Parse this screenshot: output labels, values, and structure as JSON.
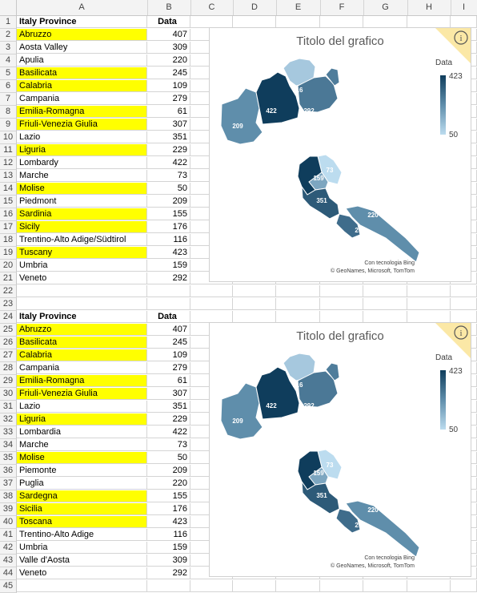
{
  "columns": [
    "A",
    "B",
    "C",
    "D",
    "E",
    "F",
    "G",
    "H",
    "I"
  ],
  "rows": [
    {
      "n": "1",
      "a": "Italy Province",
      "b": "Data",
      "hdr": true
    },
    {
      "n": "2",
      "a": "Abruzzo",
      "b": "407",
      "y": true
    },
    {
      "n": "3",
      "a": "Aosta Valley",
      "b": "309"
    },
    {
      "n": "4",
      "a": "Apulia",
      "b": "220"
    },
    {
      "n": "5",
      "a": "Basilicata",
      "b": "245",
      "y": true
    },
    {
      "n": "6",
      "a": "Calabria",
      "b": "109",
      "y": true
    },
    {
      "n": "7",
      "a": "Campania",
      "b": "279"
    },
    {
      "n": "8",
      "a": "Emilia-Romagna",
      "b": "61",
      "y": true
    },
    {
      "n": "9",
      "a": "Friuli-Venezia Giulia",
      "b": "307",
      "y": true
    },
    {
      "n": "10",
      "a": "Lazio",
      "b": "351"
    },
    {
      "n": "11",
      "a": "Liguria",
      "b": "229",
      "y": true
    },
    {
      "n": "12",
      "a": "Lombardy",
      "b": "422"
    },
    {
      "n": "13",
      "a": "Marche",
      "b": "73"
    },
    {
      "n": "14",
      "a": "Molise",
      "b": "50",
      "y": true
    },
    {
      "n": "15",
      "a": "Piedmont",
      "b": "209"
    },
    {
      "n": "16",
      "a": "Sardinia",
      "b": "155",
      "y": true
    },
    {
      "n": "17",
      "a": "Sicily",
      "b": "176",
      "y": true
    },
    {
      "n": "18",
      "a": "Trentino-Alto Adige/Südtirol",
      "b": "116"
    },
    {
      "n": "19",
      "a": "Tuscany",
      "b": "423",
      "y": true
    },
    {
      "n": "20",
      "a": "Umbria",
      "b": "159"
    },
    {
      "n": "21",
      "a": "Veneto",
      "b": "292"
    },
    {
      "n": "22",
      "a": "",
      "b": ""
    },
    {
      "n": "23",
      "a": "",
      "b": ""
    },
    {
      "n": "24",
      "a": "Italy Province",
      "b": "Data",
      "hdr": true
    },
    {
      "n": "25",
      "a": "Abruzzo",
      "b": "407",
      "y": true
    },
    {
      "n": "26",
      "a": "Basilicata",
      "b": "245",
      "y": true
    },
    {
      "n": "27",
      "a": "Calabria",
      "b": "109",
      "y": true
    },
    {
      "n": "28",
      "a": "Campania",
      "b": "279"
    },
    {
      "n": "29",
      "a": "Emilia-Romagna",
      "b": "61",
      "y": true
    },
    {
      "n": "30",
      "a": "Friuli-Venezia Giulia",
      "b": "307",
      "y": true
    },
    {
      "n": "31",
      "a": "Lazio",
      "b": "351"
    },
    {
      "n": "32",
      "a": "Liguria",
      "b": "229",
      "y": true
    },
    {
      "n": "33",
      "a": "Lombardia",
      "b": "422"
    },
    {
      "n": "34",
      "a": "Marche",
      "b": "73"
    },
    {
      "n": "35",
      "a": "Molise",
      "b": "50",
      "y": true
    },
    {
      "n": "36",
      "a": "Piemonte",
      "b": "209"
    },
    {
      "n": "37",
      "a": "Puglia",
      "b": "220"
    },
    {
      "n": "38",
      "a": "Sardegna",
      "b": "155",
      "y": true
    },
    {
      "n": "39",
      "a": "Sicilia",
      "b": "176",
      "y": true
    },
    {
      "n": "40",
      "a": "Toscana",
      "b": "423",
      "y": true
    },
    {
      "n": "41",
      "a": "Trentino-Alto Adige",
      "b": "116"
    },
    {
      "n": "42",
      "a": "Umbria",
      "b": "159"
    },
    {
      "n": "43",
      "a": "Valle d'Aosta",
      "b": "309"
    },
    {
      "n": "44",
      "a": "Veneto",
      "b": "292"
    },
    {
      "n": "45",
      "a": "",
      "b": ""
    }
  ],
  "charts": [
    {
      "title": "Titolo del grafico",
      "info_icon": "info-icon",
      "legend_title": "Data",
      "legend_max": "423",
      "legend_min": "50",
      "credit_line1": "Con tecnologia Bing",
      "credit_line2": "© GeoNames, Microsoft, TomTom"
    },
    {
      "title": "Titolo del grafico",
      "info_icon": "info-icon",
      "legend_title": "Data",
      "legend_max": "423",
      "legend_min": "50",
      "credit_line1": "Con tecnologia Bing",
      "credit_line2": "© GeoNames, Microsoft, TomTom"
    }
  ],
  "map_labels": [
    "209",
    "422",
    "116",
    "292",
    "73",
    "159",
    "351",
    "220",
    "279"
  ],
  "colors": {
    "highlight": "#ffff00",
    "dark": "#0f3d5c",
    "light": "#bcdcef"
  }
}
